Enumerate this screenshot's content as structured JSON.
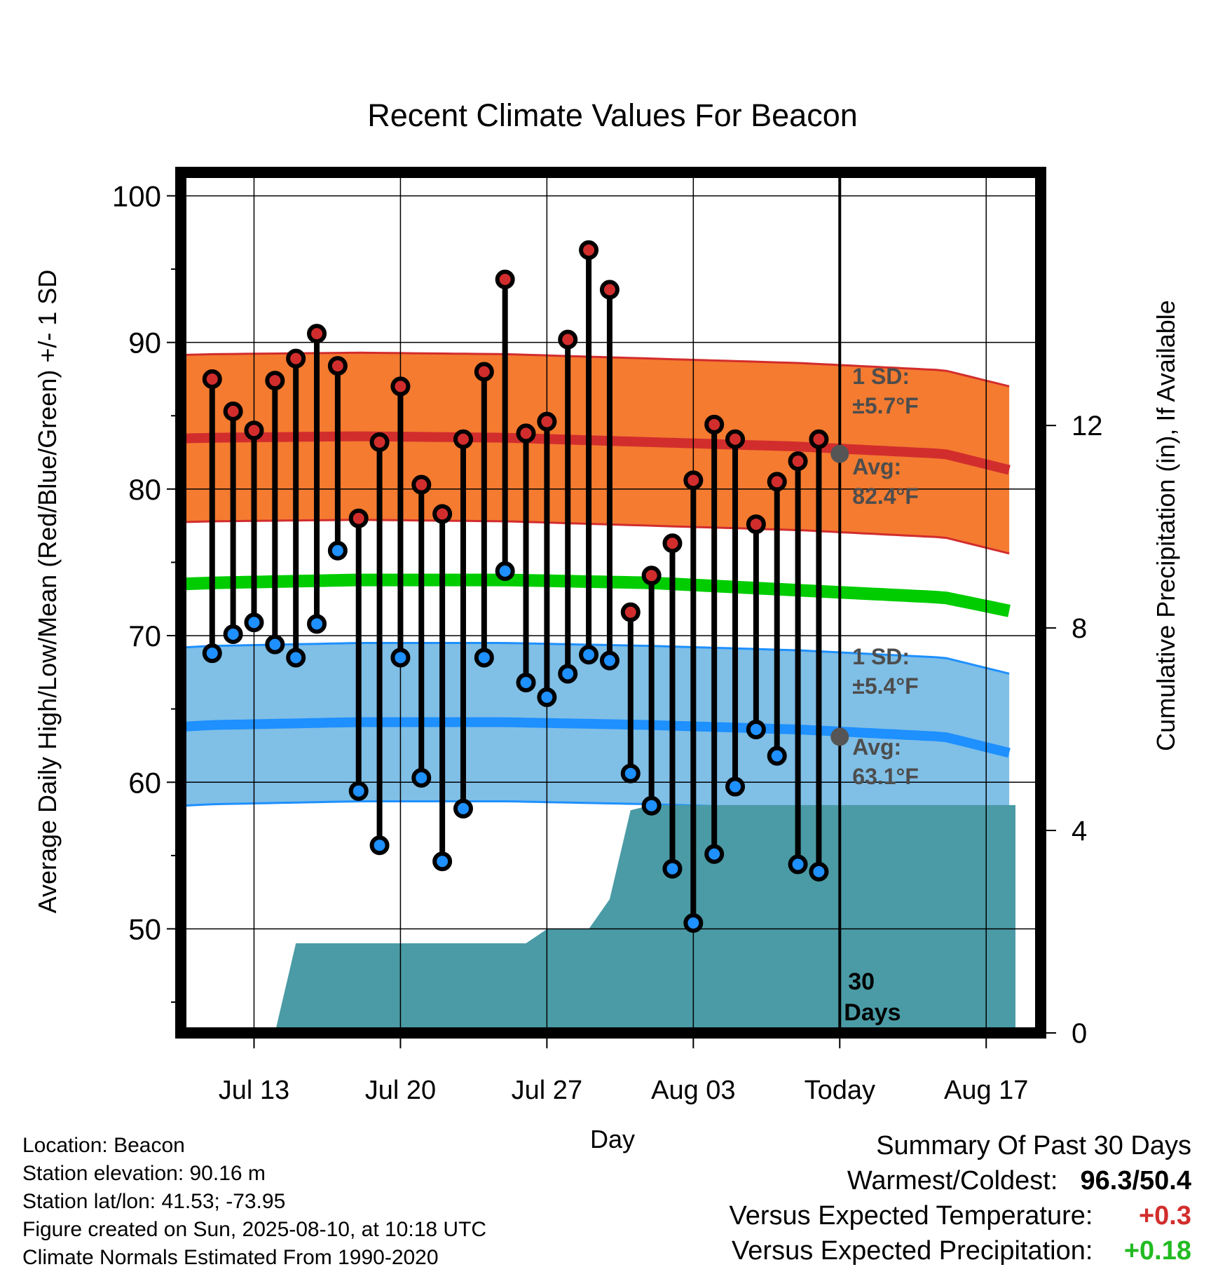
{
  "chart_data": {
    "type": "line",
    "title": "Recent Climate Values For Beacon",
    "xlabel": "Day",
    "ylabel": "Average Daily High/Low/Mean (Red/Blue/Green) +/- 1 SD",
    "y2label": "Cumulative Precipitation (in), If Available",
    "ylim": [
      42.9,
      101.6
    ],
    "y2lim": [
      0,
      17
    ],
    "x_tick_labels": [
      "Jul 13",
      "Jul 20",
      "Jul 27",
      "Aug 03",
      "Today",
      "Aug 17"
    ],
    "y_ticks": [
      50,
      60,
      70,
      80,
      90,
      100
    ],
    "y2_ticks": [
      0,
      4,
      8,
      12
    ],
    "grid": true,
    "dates": [
      "Jul 11",
      "Jul 12",
      "Jul 13",
      "Jul 14",
      "Jul 15",
      "Jul 16",
      "Jul 17",
      "Jul 18",
      "Jul 19",
      "Jul 20",
      "Jul 21",
      "Jul 22",
      "Jul 23",
      "Jul 24",
      "Jul 25",
      "Jul 26",
      "Jul 27",
      "Jul 28",
      "Jul 29",
      "Jul 30",
      "Jul 31",
      "Aug 01",
      "Aug 02",
      "Aug 03",
      "Aug 04",
      "Aug 05",
      "Aug 06",
      "Aug 07",
      "Aug 08",
      "Aug 09"
    ],
    "series": [
      {
        "name": "High",
        "color": "#d22d2d",
        "values": [
          87.5,
          85.3,
          84.0,
          87.4,
          88.9,
          90.6,
          88.4,
          78.0,
          83.2,
          87.0,
          80.3,
          78.3,
          83.4,
          88.0,
          94.3,
          83.8,
          84.6,
          90.2,
          96.3,
          93.6,
          71.6,
          74.1,
          76.3,
          80.6,
          84.4,
          83.4,
          77.6,
          80.5,
          81.9,
          83.4
        ]
      },
      {
        "name": "Low",
        "color": "#1e90ff",
        "values": [
          68.8,
          70.1,
          70.9,
          69.4,
          68.5,
          70.8,
          75.8,
          59.4,
          55.7,
          68.5,
          60.3,
          54.6,
          58.2,
          68.5,
          74.4,
          66.8,
          65.8,
          67.4,
          68.7,
          68.3,
          60.6,
          58.4,
          54.1,
          50.4,
          55.1,
          59.7,
          63.6,
          61.8,
          54.4,
          53.9
        ]
      }
    ],
    "normals": {
      "days_offset": [
        -5.4,
        0,
        7,
        14,
        21,
        28,
        35,
        38.4
      ],
      "avg_high": [
        83.3,
        83.5,
        83.6,
        83.5,
        83.2,
        82.9,
        82.4,
        81.2
      ],
      "avg_low": [
        63.5,
        63.9,
        64.1,
        64.1,
        63.9,
        63.6,
        63.1,
        61.9
      ],
      "avg_mean": [
        73.3,
        73.6,
        73.8,
        73.8,
        73.6,
        73.1,
        72.6,
        71.6
      ],
      "high_sd": 5.7,
      "low_sd": 5.4
    },
    "precipitation": {
      "days_offset": [
        0,
        1,
        2,
        3,
        4,
        5,
        6,
        7,
        8,
        9,
        10,
        11,
        12,
        13,
        14,
        15,
        16,
        17,
        18,
        19,
        20,
        21,
        22,
        23,
        24,
        25,
        26,
        27,
        28,
        29,
        30,
        38.4
      ],
      "values": [
        0,
        0,
        0,
        0,
        1.77,
        1.77,
        1.77,
        1.77,
        1.77,
        1.77,
        1.77,
        1.77,
        1.77,
        1.77,
        1.77,
        1.77,
        2.05,
        2.05,
        2.05,
        2.64,
        4.4,
        4.5,
        4.5,
        4.5,
        4.5,
        4.5,
        4.5,
        4.5,
        4.5,
        4.5,
        4.5,
        4.5
      ]
    },
    "annotations": {
      "high_sd_label_1": "1 SD:",
      "high_sd_label_2": "±5.7°F",
      "high_avg_label_1": "Avg:",
      "high_avg_label_2": "82.4°F",
      "high_avg_today": 82.4,
      "low_sd_label_1": "1 SD:",
      "low_sd_label_2": "±5.4°F",
      "low_avg_label_1": "Avg:",
      "low_avg_label_2": "63.1°F",
      "low_avg_today": 63.1,
      "period_label_1": "30",
      "period_label_2": "Days"
    },
    "colors": {
      "high_band": "#f47b30",
      "high_line": "#d22d2d",
      "low_band": "#80bfe6",
      "low_line": "#1e90ff",
      "mean_line": "#00cc00",
      "precip_fill": "#4a9ba5",
      "marker_high": "#d22d2d",
      "marker_low": "#1e90ff",
      "today_marker": "#555555"
    }
  },
  "metadata_panel": {
    "location": "Location: Beacon",
    "elevation": "Station elevation: 90.16 m",
    "latlon": "Station lat/lon: 41.53; -73.95",
    "created": "Figure created on Sun, 2025-08-10, at 10:18 UTC",
    "normals": "Climate Normals Estimated From 1990-2020"
  },
  "summary": {
    "heading": "Summary Of Past 30 Days",
    "warm_cold_label": "Warmest/Coldest:",
    "warm_cold_value": "96.3/50.4",
    "temp_label": "Versus Expected Temperature:",
    "temp_value": "+0.3",
    "temp_color": "#d22d2d",
    "precip_label": "Versus Expected Precipitation:",
    "precip_value": "+0.18",
    "precip_color": "#22bb22"
  }
}
